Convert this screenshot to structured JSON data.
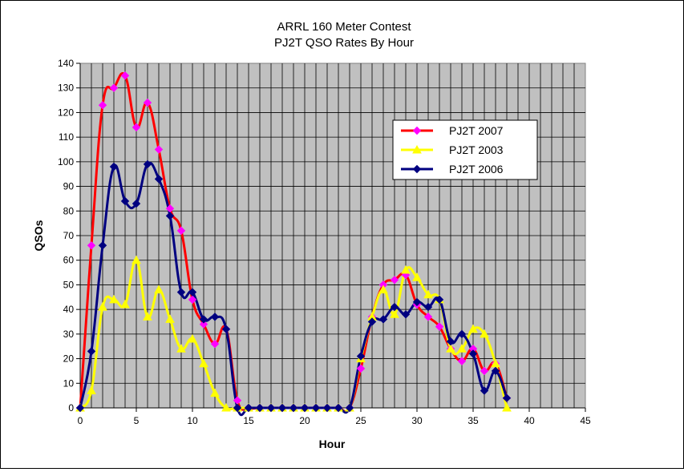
{
  "chart_data": {
    "type": "line",
    "title": "ARRL 160 Meter Contest",
    "subtitle": "PJ2T QSO Rates By Hour",
    "xlabel": "Hour",
    "ylabel": "QSOs",
    "xlim": [
      0,
      45
    ],
    "ylim": [
      0,
      140
    ],
    "x_ticks": [
      0,
      5,
      10,
      15,
      20,
      25,
      30,
      35,
      40,
      45
    ],
    "y_ticks": [
      0,
      10,
      20,
      30,
      40,
      50,
      60,
      70,
      80,
      90,
      100,
      110,
      120,
      130,
      140
    ],
    "grid": true,
    "legend_position": "right",
    "plot_background": "#c0c0c0",
    "series": [
      {
        "name": "PJ2T 2007",
        "color": "#ff0000",
        "marker": "diamond",
        "marker_color": "#ff00ff",
        "x": [
          0,
          1,
          2,
          3,
          4,
          5,
          6,
          7,
          8,
          9,
          10,
          11,
          12,
          13,
          14,
          15,
          16,
          17,
          18,
          19,
          20,
          21,
          22,
          23,
          24,
          25,
          26,
          27,
          28,
          29,
          30,
          31,
          32,
          33,
          34,
          35,
          36,
          37,
          38
        ],
        "values": [
          0,
          66,
          123,
          130,
          135,
          114,
          124,
          105,
          81,
          72,
          44,
          34,
          26,
          32,
          3,
          0,
          0,
          0,
          0,
          0,
          0,
          0,
          0,
          0,
          0,
          16,
          37,
          50,
          52,
          54,
          42,
          37,
          33,
          24,
          19,
          24,
          15,
          18,
          4
        ]
      },
      {
        "name": "PJ2T 2003",
        "color": "#ffff00",
        "marker": "triangle",
        "marker_color": "#ffff00",
        "x": [
          0,
          1,
          2,
          3,
          4,
          5,
          6,
          7,
          8,
          9,
          10,
          11,
          12,
          13,
          14,
          15,
          16,
          17,
          18,
          19,
          20,
          21,
          22,
          23,
          24,
          25,
          26,
          27,
          28,
          29,
          30,
          31,
          32,
          33,
          34,
          35,
          36,
          37,
          38
        ],
        "values": [
          0,
          7,
          41,
          44,
          42,
          60,
          37,
          48,
          36,
          24,
          28,
          18,
          6,
          0,
          0,
          0,
          0,
          0,
          0,
          0,
          0,
          0,
          0,
          0,
          0,
          20,
          37,
          48,
          38,
          56,
          53,
          46,
          44,
          24,
          24,
          32,
          30,
          18,
          0
        ]
      },
      {
        "name": "PJ2T 2006",
        "color": "#000080",
        "marker": "diamond",
        "marker_color": "#000080",
        "x": [
          0,
          1,
          2,
          3,
          4,
          5,
          6,
          7,
          8,
          9,
          10,
          11,
          12,
          13,
          14,
          15,
          16,
          17,
          18,
          19,
          20,
          21,
          22,
          23,
          24,
          25,
          26,
          27,
          28,
          29,
          30,
          31,
          32,
          33,
          34,
          35,
          36,
          37,
          38
        ],
        "values": [
          0,
          23,
          66,
          98,
          84,
          83,
          99,
          93,
          78,
          47,
          47,
          36,
          37,
          32,
          0,
          0,
          0,
          0,
          0,
          0,
          0,
          0,
          0,
          0,
          0,
          21,
          35,
          36,
          41,
          38,
          43,
          41,
          44,
          27,
          30,
          22,
          7,
          15,
          4
        ]
      }
    ]
  }
}
